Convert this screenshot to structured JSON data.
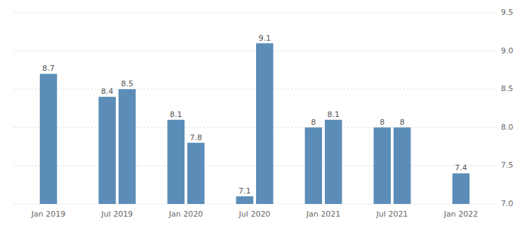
{
  "chart_data": {
    "type": "bar",
    "categories": [
      "Jan 2019",
      "Jul 2019",
      "Jan 2020",
      "Jul 2020",
      "Jan 2021",
      "Jul 2021",
      "Jan 2022"
    ],
    "series": [
      {
        "color": "#5b8db8",
        "values": [
          8.7,
          8.4,
          8.1,
          7.1,
          8.0,
          8.0,
          7.4
        ]
      },
      {
        "color": "#5b8db8",
        "values": [
          null,
          8.5,
          7.8,
          9.1,
          8.1,
          8.0,
          null
        ]
      }
    ],
    "ylim": [
      7.0,
      9.5
    ],
    "yticks": [
      {
        "value": 7.0,
        "label": "7.0"
      },
      7.5,
      {
        "value": 8.0,
        "label": "8.0"
      },
      8.5,
      {
        "value": 9.0,
        "label": "9.0"
      },
      9.5
    ],
    "grid": true,
    "data_labels": true
  }
}
